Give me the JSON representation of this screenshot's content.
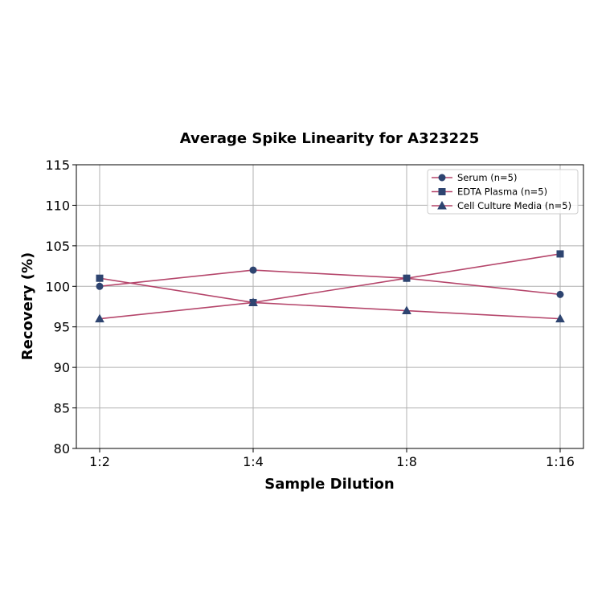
{
  "chart_data": {
    "type": "line",
    "title": "Average Spike Linearity for A323225",
    "xlabel": "Sample Dilution",
    "ylabel": "Recovery (%)",
    "categories": [
      "1:2",
      "1:4",
      "1:8",
      "1:16"
    ],
    "ylim": [
      80,
      115
    ],
    "yticks": [
      80,
      85,
      90,
      95,
      100,
      105,
      110,
      115
    ],
    "grid": true,
    "legend_position": "upper right",
    "line_color": "#b5466b",
    "marker_color": "#2e4470",
    "series": [
      {
        "name": "Serum (n=5)",
        "marker": "circle",
        "values": [
          100,
          102,
          101,
          99
        ]
      },
      {
        "name": "EDTA Plasma (n=5)",
        "marker": "square",
        "values": [
          101,
          98,
          101,
          104
        ]
      },
      {
        "name": "Cell Culture Media (n=5)",
        "marker": "triangle",
        "values": [
          96,
          98,
          97,
          96
        ]
      }
    ]
  }
}
